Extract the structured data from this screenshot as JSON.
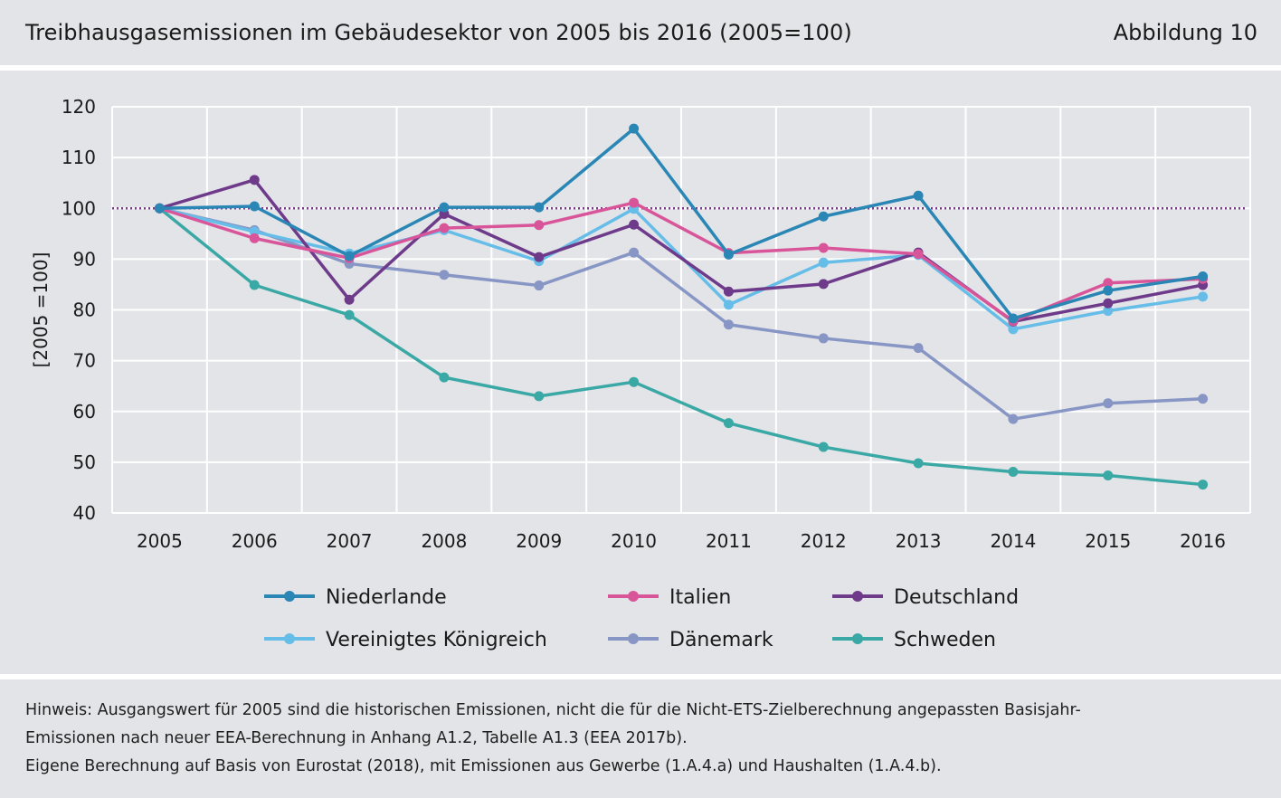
{
  "header": {
    "title": "Treibhausgasemissionen im Gebäudesektor von 2005 bis 2016 (2005=100)",
    "figure_label": "Abbildung 10"
  },
  "footer": {
    "lines": [
      "Hinweis: Ausgangswert für 2005 sind die historischen Emissionen, nicht die für die Nicht-ETS-Zielberechnung angepassten Basisjahr-",
      "Emissionen nach neuer EEA-Berechnung in Anhang A1.2, Tabelle A1.3 (EEA 2017b).",
      "Eigene Berechnung auf Basis von Eurostat (2018), mit Emissionen aus Gewerbe (1.A.4.a) und Haushalten (1.A.4.b)."
    ]
  },
  "chart_data": {
    "type": "line",
    "title": "Treibhausgasemissionen im Gebäudesektor von 2005 bis 2016 (2005=100)",
    "ylabel": "[2005 =100]",
    "xlabel": "",
    "ylim": [
      40,
      120
    ],
    "yticks": [
      40,
      50,
      60,
      70,
      80,
      90,
      100,
      110,
      120
    ],
    "grid": true,
    "legend_position": "bottom",
    "reference_line": {
      "y": 100,
      "color": "#7b3a8c",
      "style": "dotted"
    },
    "x": [
      "2005",
      "2006",
      "2007",
      "2008",
      "2009",
      "2010",
      "2011",
      "2012",
      "2013",
      "2014",
      "2015",
      "2016"
    ],
    "series": [
      {
        "name": "Niederlande",
        "color": "#2a86b4",
        "values": [
          100,
          100.4,
          90.6,
          100.2,
          100.2,
          115.7,
          90.9,
          98.4,
          102.5,
          78.3,
          83.8,
          86.6
        ]
      },
      {
        "name": "Italien",
        "color": "#d9559a",
        "values": [
          100,
          94.1,
          90.2,
          96.1,
          96.7,
          101.1,
          91.2,
          92.2,
          91.0,
          77.8,
          85.3,
          86.1
        ]
      },
      {
        "name": "Deutschland",
        "color": "#6e3a8a",
        "values": [
          100,
          105.6,
          82.0,
          98.9,
          90.4,
          96.8,
          83.6,
          85.1,
          91.3,
          77.7,
          81.3,
          84.9
        ]
      },
      {
        "name": "Vereinigtes Königreich",
        "color": "#66bde8",
        "values": [
          100,
          95.4,
          91.1,
          95.7,
          89.6,
          99.9,
          81.0,
          89.3,
          90.8,
          76.2,
          79.8,
          82.6
        ]
      },
      {
        "name": "Dänemark",
        "color": "#8796c4",
        "values": [
          100,
          95.7,
          89.1,
          86.9,
          84.8,
          91.3,
          77.1,
          74.4,
          72.5,
          58.5,
          61.6,
          62.5
        ]
      },
      {
        "name": "Schweden",
        "color": "#3aa8a4",
        "values": [
          100,
          84.9,
          79.0,
          66.7,
          63.0,
          65.8,
          57.7,
          53.0,
          49.8,
          48.1,
          47.4,
          45.6
        ]
      }
    ]
  }
}
